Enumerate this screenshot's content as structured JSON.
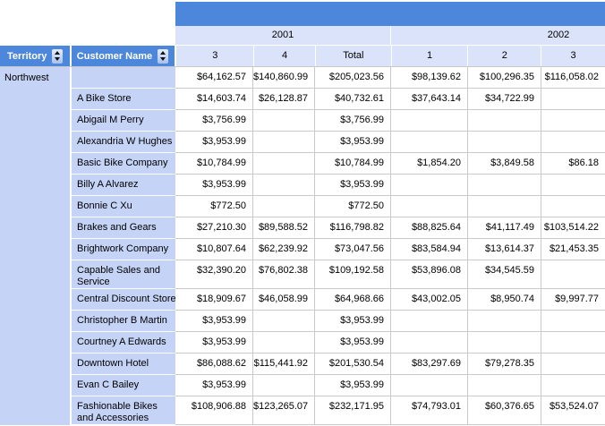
{
  "header": {
    "territory_label": "Territory",
    "customer_label": "Customer Name",
    "year_2001": "2001",
    "year_2002": "2002",
    "quarter_cols": [
      "3",
      "4",
      "Total",
      "1",
      "2",
      "3"
    ]
  },
  "main": {
    "territory_value": "Northwest",
    "subtotal_values": [
      "$64,162.57",
      "$140,860.99",
      "$205,023.56",
      "$98,139.62",
      "$100,296.35",
      "$116,058.02"
    ],
    "rows": [
      {
        "name": "A Bike Store",
        "values": [
          "$14,603.74",
          "$26,128.87",
          "$40,732.61",
          "$37,643.14",
          "$34,722.99",
          ""
        ]
      },
      {
        "name": "Abigail M Perry",
        "values": [
          "$3,756.99",
          "",
          "$3,756.99",
          "",
          "",
          ""
        ]
      },
      {
        "name": "Alexandria W Hughes",
        "values": [
          "$3,953.99",
          "",
          "$3,953.99",
          "",
          "",
          ""
        ]
      },
      {
        "name": "Basic Bike Company",
        "values": [
          "$10,784.99",
          "",
          "$10,784.99",
          "$1,854.20",
          "$3,849.58",
          "$86.18"
        ]
      },
      {
        "name": "Billy A Alvarez",
        "values": [
          "$3,953.99",
          "",
          "$3,953.99",
          "",
          "",
          ""
        ]
      },
      {
        "name": "Bonnie C Xu",
        "values": [
          "$772.50",
          "",
          "$772.50",
          "",
          "",
          ""
        ]
      },
      {
        "name": "Brakes and Gears",
        "values": [
          "$27,210.30",
          "$89,588.52",
          "$116,798.82",
          "$88,825.64",
          "$41,117.49",
          "$103,514.22"
        ]
      },
      {
        "name": "Brightwork Company",
        "values": [
          "$10,807.64",
          "$62,239.92",
          "$73,047.56",
          "$83,584.94",
          "$13,614.37",
          "$21,453.35"
        ]
      },
      {
        "name": "Capable Sales and Service",
        "values": [
          "$32,390.20",
          "$76,802.38",
          "$109,192.58",
          "$53,896.08",
          "$34,545.59",
          ""
        ]
      },
      {
        "name": "Central Discount Store",
        "values": [
          "$18,909.67",
          "$46,058.99",
          "$64,968.66",
          "$43,002.05",
          "$8,950.74",
          "$9,997.77"
        ]
      },
      {
        "name": "Christopher B Martin",
        "values": [
          "$3,953.99",
          "",
          "$3,953.99",
          "",
          "",
          ""
        ]
      },
      {
        "name": "Courtney A Edwards",
        "values": [
          "$3,953.99",
          "",
          "$3,953.99",
          "",
          "",
          ""
        ]
      },
      {
        "name": "Downtown Hotel",
        "values": [
          "$86,088.62",
          "$115,441.92",
          "$201,530.54",
          "$83,297.69",
          "$79,278.35",
          ""
        ]
      },
      {
        "name": "Evan C Bailey",
        "values": [
          "$3,953.99",
          "",
          "$3,953.99",
          "",
          "",
          ""
        ]
      },
      {
        "name": "Fashionable Bikes and Accessories",
        "values": [
          "$108,906.88",
          "$123,265.07",
          "$232,171.95",
          "$74,793.01",
          "$60,376.65",
          "$53,524.07"
        ]
      }
    ]
  },
  "colors": {
    "header_blue": "#4d87dc",
    "light_blue": "#dbe3fa",
    "periwinkle": "#c5d3f7",
    "grid": "#c9c9c9"
  }
}
